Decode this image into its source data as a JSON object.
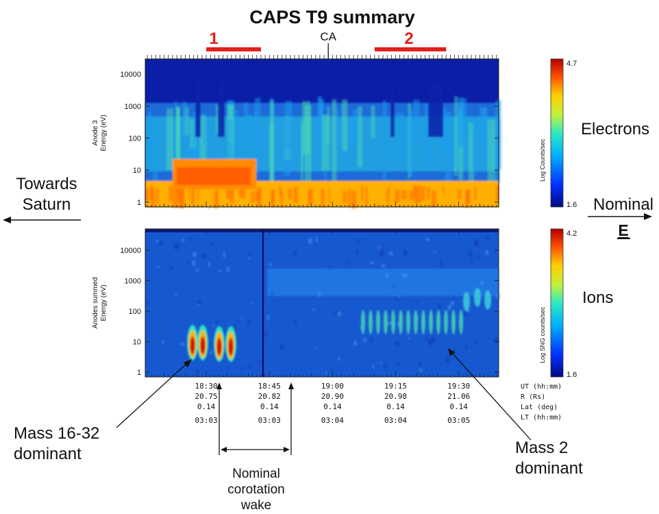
{
  "chart_data": [
    {
      "type": "heatmap",
      "title": "CAPS T9 summary",
      "species_label": "Electrons",
      "ylabel_line1": "Anode 3",
      "ylabel_line2": "Energy (eV)",
      "yscale": "log",
      "ylim": [
        0.7,
        30000
      ],
      "yticks": [
        1,
        10,
        100,
        1000,
        10000
      ],
      "ytick_labels": [
        "1",
        "10",
        "100",
        "1000",
        "10000"
      ],
      "colorbar": {
        "label": "Log Counts/sec",
        "min_label": "1.6",
        "max_label": "4.7",
        "min": 1.6,
        "max": 4.7
      },
      "intervals": [
        {
          "label": "1",
          "start": "18:30",
          "end": "18:43",
          "color": "#e0201c"
        },
        {
          "label": "2",
          "start": "19:10",
          "end": "19:27",
          "color": "#e0201c"
        }
      ],
      "closest_approach": {
        "label": "CA",
        "time": "18:59"
      }
    },
    {
      "type": "heatmap",
      "species_label": "Ions",
      "ylabel_line1": "Anodes summed",
      "ylabel_line2": "Energy (eV)",
      "yscale": "log",
      "ylim": [
        0.7,
        50000
      ],
      "yticks": [
        1,
        10,
        100,
        1000,
        10000
      ],
      "ytick_labels": [
        "1",
        "10",
        "100",
        "1000",
        "10000"
      ],
      "colorbar": {
        "label": "Log SNG counts/sec",
        "min_label": "1.6",
        "max_label": "4.2",
        "min": 1.6,
        "max": 4.2
      }
    }
  ],
  "time_axis": {
    "columns": [
      {
        "ut": "18:30",
        "r": "20.75",
        "lat": "0.14",
        "lt": "03:03"
      },
      {
        "ut": "18:45",
        "r": "20.82",
        "lat": "0.14",
        "lt": "03:03"
      },
      {
        "ut": "19:00",
        "r": "20.90",
        "lat": "0.14",
        "lt": "03:04"
      },
      {
        "ut": "19:15",
        "r": "20.98",
        "lat": "0.14",
        "lt": "03:04"
      },
      {
        "ut": "19:30",
        "r": "21.06",
        "lat": "0.14",
        "lt": "03:05"
      }
    ],
    "row_labels": [
      "UT (hh:mm)",
      "R (Rs)",
      "Lat (deg)",
      "LT (hh:mm)"
    ]
  },
  "annotations": {
    "towards_saturn": [
      "Towards",
      "Saturn"
    ],
    "nominal_e": [
      "Nominal",
      "E"
    ],
    "mass_16_32": [
      "Mass 16-32",
      "dominant"
    ],
    "mass_2": [
      "Mass 2",
      "dominant"
    ],
    "wake": [
      "Nominal",
      "corotation",
      "wake"
    ]
  }
}
